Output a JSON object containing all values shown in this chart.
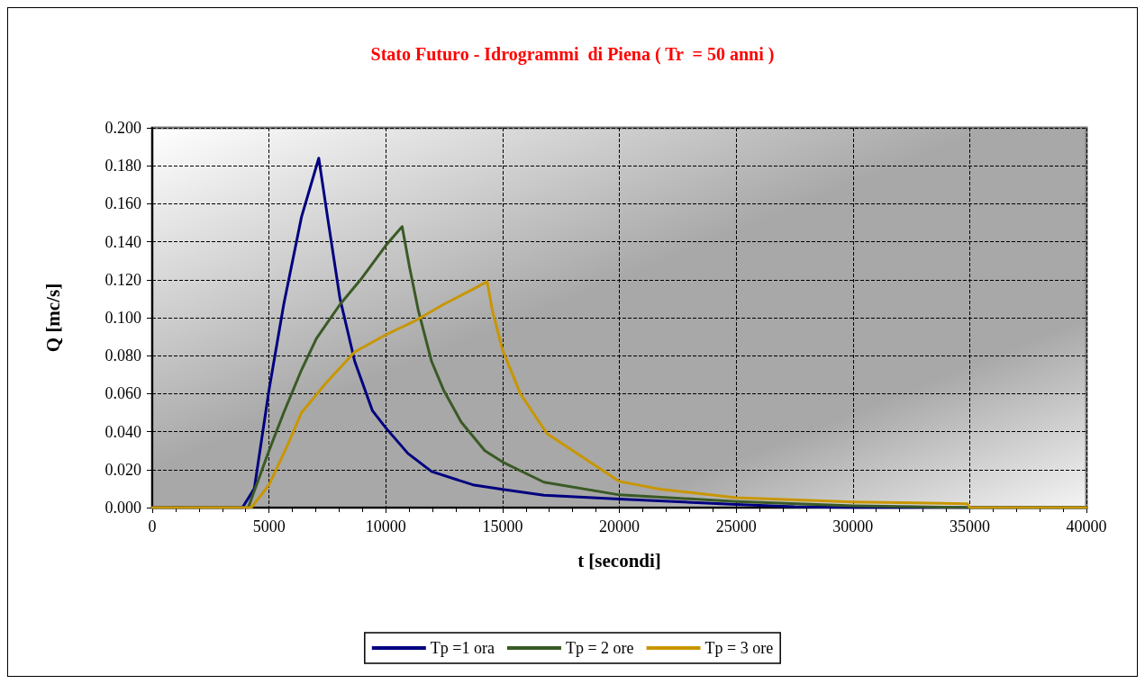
{
  "chart_data": {
    "type": "line",
    "title": "Stato Futuro - Idrogrammi  di Piena ( Tr  = 50 anni )",
    "xlabel": "t [secondi]",
    "ylabel": "Q [mc/s]",
    "xlim": [
      0,
      40000
    ],
    "xticks": [
      0,
      5000,
      10000,
      15000,
      20000,
      25000,
      30000,
      35000,
      40000
    ],
    "ylim": [
      0,
      0.2
    ],
    "yticks": [
      {
        "value": 0,
        "label": "0.000"
      },
      {
        "value": 0.02,
        "label": "0.020"
      },
      {
        "value": 0.04,
        "label": "0.040"
      },
      {
        "value": 0.06,
        "label": "0.060"
      },
      {
        "value": 0.08,
        "label": "0.080"
      },
      {
        "value": 0.1,
        "label": "0.100"
      },
      {
        "value": 0.12,
        "label": "0.120"
      },
      {
        "value": 0.14,
        "label": "0.140"
      },
      {
        "value": 0.16,
        "label": "0.160"
      },
      {
        "value": 0.18,
        "label": "0.180"
      },
      {
        "value": 0.2,
        "label": "0.200"
      }
    ],
    "grid": true,
    "legend": "bottom",
    "marker": "none",
    "line_style": "solid",
    "series": [
      {
        "name": "Tp =1 ora",
        "color": "#000080",
        "x": [
          0,
          3860,
          4370,
          5000,
          5630,
          6390,
          7130,
          7530,
          8040,
          8670,
          9430,
          10000,
          10950,
          11960,
          13730,
          15000,
          16770,
          20000,
          25000,
          27500,
          30000,
          40000
        ],
        "values": [
          0,
          0,
          0.01,
          0.062,
          0.107,
          0.153,
          0.184,
          0.151,
          0.11,
          0.077,
          0.051,
          0.042,
          0.0285,
          0.019,
          0.012,
          0.0096,
          0.0065,
          0.0045,
          0.0017,
          0.0005,
          0,
          0
        ]
      },
      {
        "name": "Tp = 2 ore",
        "color": "#3a5a25",
        "x": [
          0,
          4110,
          5000,
          5630,
          6390,
          7030,
          8040,
          8920,
          10000,
          10700,
          11010,
          11390,
          11960,
          12470,
          13230,
          14240,
          15000,
          16770,
          20000,
          25000,
          30000,
          35000,
          40000
        ],
        "values": [
          0,
          0,
          0.03,
          0.05,
          0.0725,
          0.089,
          0.107,
          0.12,
          0.138,
          0.148,
          0.127,
          0.104,
          0.077,
          0.062,
          0.045,
          0.03,
          0.024,
          0.0134,
          0.0067,
          0.0032,
          0.001,
          0,
          0
        ]
      },
      {
        "name": "Tp = 3 ore",
        "color": "#c89600",
        "x": [
          0,
          4240,
          5000,
          5760,
          6390,
          7400,
          8670,
          10000,
          11200,
          12470,
          13730,
          14340,
          14560,
          15000,
          15760,
          16900,
          20000,
          21730,
          25000,
          30000,
          34900,
          35000,
          40000
        ],
        "values": [
          0,
          0,
          0.012,
          0.032,
          0.05,
          0.065,
          0.082,
          0.091,
          0.098,
          0.107,
          0.115,
          0.119,
          0.104,
          0.083,
          0.06,
          0.039,
          0.0138,
          0.0097,
          0.0052,
          0.003,
          0.002,
          0,
          0
        ]
      }
    ]
  }
}
